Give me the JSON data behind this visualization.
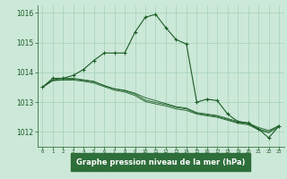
{
  "bg_color": "#cce8d8",
  "plot_bg_color": "#cce8d8",
  "grid_color": "#99ccb0",
  "line_color": "#1a5c25",
  "xlabel": "Graphe pression niveau de la mer (hPa)",
  "xlabel_color": "#ffffff",
  "xlabel_bg": "#2d6e3a",
  "tick_color": "#1a5c25",
  "xlim": [
    -0.5,
    23.5
  ],
  "ylim": [
    1011.5,
    1016.25
  ],
  "yticks": [
    1012,
    1013,
    1014,
    1015,
    1016
  ],
  "xticks": [
    0,
    1,
    2,
    3,
    4,
    5,
    6,
    7,
    8,
    9,
    10,
    11,
    12,
    13,
    14,
    15,
    16,
    17,
    18,
    19,
    20,
    21,
    22,
    23
  ],
  "series_main": [
    1013.5,
    1013.8,
    1013.8,
    1013.9,
    1014.1,
    1014.4,
    1014.65,
    1014.65,
    1014.65,
    1015.35,
    1015.85,
    1015.95,
    1015.5,
    1015.1,
    1014.95,
    1013.0,
    1013.1,
    1013.05,
    1012.6,
    1012.35,
    1012.3,
    1012.1,
    1011.8,
    1012.2
  ],
  "series_flat": [
    [
      1013.5,
      1013.75,
      1013.8,
      1013.8,
      1013.75,
      1013.7,
      1013.55,
      1013.45,
      1013.4,
      1013.3,
      1013.15,
      1013.05,
      1012.95,
      1012.85,
      1012.8,
      1012.65,
      1012.6,
      1012.55,
      1012.45,
      1012.35,
      1012.3,
      1012.15,
      1012.05,
      1012.2
    ],
    [
      1013.5,
      1013.72,
      1013.74,
      1013.74,
      1013.7,
      1013.64,
      1013.52,
      1013.4,
      1013.34,
      1013.22,
      1013.02,
      1012.94,
      1012.87,
      1012.77,
      1012.72,
      1012.6,
      1012.54,
      1012.49,
      1012.39,
      1012.29,
      1012.24,
      1012.07,
      1011.97,
      1012.17
    ],
    [
      1013.5,
      1013.73,
      1013.76,
      1013.77,
      1013.73,
      1013.68,
      1013.56,
      1013.44,
      1013.38,
      1013.27,
      1013.07,
      1012.99,
      1012.92,
      1012.82,
      1012.77,
      1012.62,
      1012.57,
      1012.52,
      1012.42,
      1012.32,
      1012.27,
      1012.1,
      1012.0,
      1012.22
    ]
  ]
}
